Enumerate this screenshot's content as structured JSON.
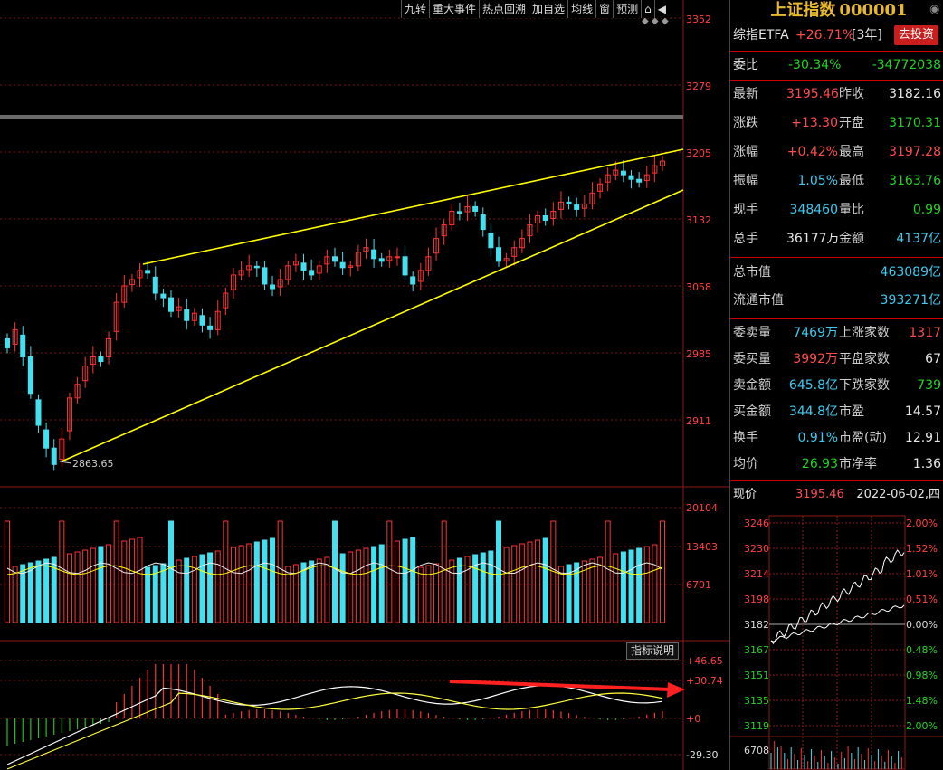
{
  "toolbar": {
    "items": [
      "九转",
      "重大事件",
      "热点回溯",
      "加自选",
      "均线",
      "窗",
      "预测"
    ]
  },
  "main_chart": {
    "price_ticks": [
      "3352",
      "3279",
      "3205",
      "3132",
      "3058",
      "2985",
      "2911"
    ],
    "low_label": "2863.65",
    "volume_ticks": [
      "20104",
      "13403",
      "6701"
    ],
    "macd_ticks": [
      "+46.65",
      "+30.74",
      "+0",
      "-29.30"
    ],
    "indicator_button": "指标说明"
  },
  "panel": {
    "title_name": "上证指数",
    "title_code": "000001",
    "etf_label": "综指ETFA",
    "etf_change": "+26.71%",
    "etf_period": "[3年]",
    "invest_button": "去投资",
    "weibi_label": "委比",
    "weibi_pct": "-30.34%",
    "weibi_val": "-34772038",
    "quote_rows": [
      {
        "l1": "最新",
        "v1": "3195.46",
        "c1": "r",
        "l2": "昨收",
        "v2": "3182.16",
        "c2": "w"
      },
      {
        "l1": "涨跌",
        "v1": "+13.30",
        "c1": "r",
        "l2": "开盘",
        "v2": "3170.31",
        "c2": "g"
      },
      {
        "l1": "涨幅",
        "v1": "+0.42%",
        "c1": "r",
        "l2": "最高",
        "v2": "3197.28",
        "c2": "r"
      },
      {
        "l1": "振幅",
        "v1": "1.05%",
        "c1": "c",
        "l2": "最低",
        "v2": "3163.76",
        "c2": "g"
      },
      {
        "l1": "现手",
        "v1": "348460",
        "c1": "c",
        "l2": "量比",
        "v2": "0.99",
        "c2": "g"
      },
      {
        "l1": "总手",
        "v1": "36177万",
        "c1": "w",
        "l2": "金额",
        "v2": "4137亿",
        "c2": "c"
      }
    ],
    "market_rows": [
      {
        "l": "总市值",
        "v": "463089亿"
      },
      {
        "l": "流通市值",
        "v": "393271亿"
      }
    ],
    "stat_rows": [
      {
        "l1": "委卖量",
        "v1": "7469万",
        "c1": "c",
        "l2": "上涨家数",
        "v2": "1317",
        "c2": "r"
      },
      {
        "l1": "委买量",
        "v1": "3992万",
        "c1": "r",
        "l2": "平盘家数",
        "v2": "67",
        "c2": "w"
      },
      {
        "l1": "卖金额",
        "v1": "645.8亿",
        "c1": "c",
        "l2": "下跌家数",
        "v2": "739",
        "c2": "g"
      },
      {
        "l1": "买金额",
        "v1": "344.8亿",
        "c1": "c",
        "l2": "市盈",
        "v2": "14.57",
        "c2": "w"
      },
      {
        "l1": "换手",
        "v1": "0.91%",
        "c1": "c",
        "l2": "市盈(动)",
        "v2": "12.91",
        "c2": "w"
      },
      {
        "l1": "均价",
        "v1": "26.93",
        "c1": "g",
        "l2": "市净率",
        "v2": "1.36",
        "c2": "w"
      }
    ],
    "current_label": "现价",
    "current_price": "3195.46",
    "current_date": "2022-06-02,四",
    "mini_left_ticks": [
      "3246",
      "3230",
      "3214",
      "3198",
      "3182",
      "3167",
      "3151",
      "3135",
      "3119"
    ],
    "mini_right_ticks": [
      "2.00%",
      "1.52%",
      "1.01%",
      "0.51%",
      "0.00%",
      "0.48%",
      "0.98%",
      "1.48%",
      "2.00%"
    ],
    "mini_volume_tick": "6708"
  },
  "colors": {
    "up": "#ff3333",
    "down": "#44e0f0",
    "trend": "#ffff00",
    "arrow": "#ff2020",
    "grid": "#8b1a1a"
  }
}
